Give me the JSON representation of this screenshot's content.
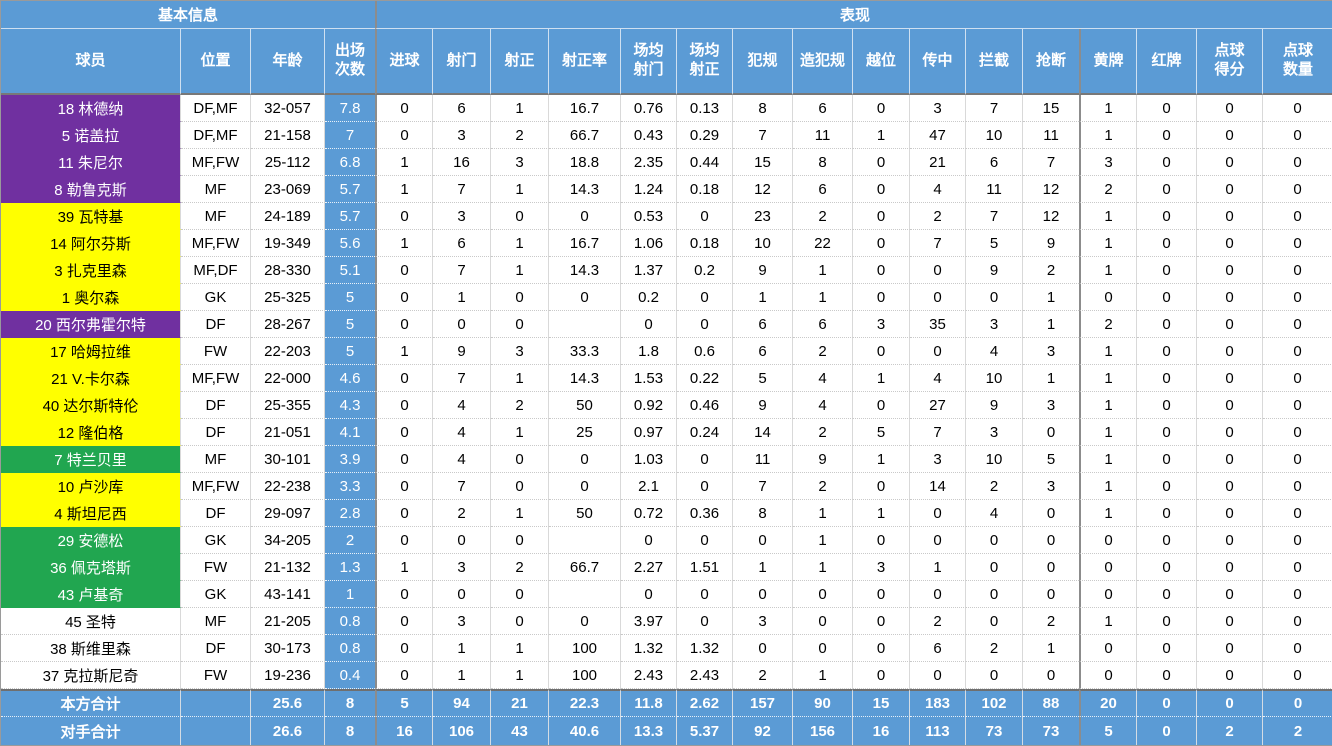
{
  "groups": {
    "basic": "基本信息",
    "performance": "表现"
  },
  "columns": [
    {
      "id": "player",
      "label": "球员"
    },
    {
      "id": "position",
      "label": "位置"
    },
    {
      "id": "age",
      "label": "年龄"
    },
    {
      "id": "apps",
      "label": "出场\n次数"
    },
    {
      "id": "goals",
      "label": "进球"
    },
    {
      "id": "shots",
      "label": "射门"
    },
    {
      "id": "shots_on_target",
      "label": "射正"
    },
    {
      "id": "shot_accuracy",
      "label": "射正率"
    },
    {
      "id": "avg_shots",
      "label": "场均\n射门"
    },
    {
      "id": "avg_shots_on_target",
      "label": "场均\n射正"
    },
    {
      "id": "fouls",
      "label": "犯规"
    },
    {
      "id": "fouls_drawn",
      "label": "造犯规"
    },
    {
      "id": "offsides",
      "label": "越位"
    },
    {
      "id": "crosses",
      "label": "传中"
    },
    {
      "id": "interceptions",
      "label": "拦截"
    },
    {
      "id": "tackles",
      "label": "抢断"
    },
    {
      "id": "yellow_cards",
      "label": "黄牌"
    },
    {
      "id": "red_cards",
      "label": "红牌"
    },
    {
      "id": "penalty_goals",
      "label": "点球\n得分"
    },
    {
      "id": "penalty_count",
      "label": "点球\n数量"
    }
  ],
  "players": [
    {
      "name": "18 林德纳",
      "color": "purple",
      "position": "DF,MF",
      "age": "32-057",
      "apps": "7.8",
      "stats": [
        "0",
        "6",
        "1",
        "16.7",
        "0.76",
        "0.13",
        "8",
        "6",
        "0",
        "3",
        "7",
        "15",
        "1",
        "0",
        "0",
        "0"
      ]
    },
    {
      "name": "5 诺盖拉",
      "color": "purple",
      "position": "DF,MF",
      "age": "21-158",
      "apps": "7",
      "stats": [
        "0",
        "3",
        "2",
        "66.7",
        "0.43",
        "0.29",
        "7",
        "11",
        "1",
        "47",
        "10",
        "11",
        "1",
        "0",
        "0",
        "0"
      ]
    },
    {
      "name": "11 朱尼尔",
      "color": "purple",
      "position": "MF,FW",
      "age": "25-112",
      "apps": "6.8",
      "stats": [
        "1",
        "16",
        "3",
        "18.8",
        "2.35",
        "0.44",
        "15",
        "8",
        "0",
        "21",
        "6",
        "7",
        "3",
        "0",
        "0",
        "0"
      ]
    },
    {
      "name": "8 勒鲁克斯",
      "color": "purple",
      "position": "MF",
      "age": "23-069",
      "apps": "5.7",
      "stats": [
        "1",
        "7",
        "1",
        "14.3",
        "1.24",
        "0.18",
        "12",
        "6",
        "0",
        "4",
        "11",
        "12",
        "2",
        "0",
        "0",
        "0"
      ]
    },
    {
      "name": "39 瓦特基",
      "color": "yellow",
      "position": "MF",
      "age": "24-189",
      "apps": "5.7",
      "stats": [
        "0",
        "3",
        "0",
        "0",
        "0.53",
        "0",
        "23",
        "2",
        "0",
        "2",
        "7",
        "12",
        "1",
        "0",
        "0",
        "0"
      ]
    },
    {
      "name": "14 阿尔芬斯",
      "color": "yellow",
      "position": "MF,FW",
      "age": "19-349",
      "apps": "5.6",
      "stats": [
        "1",
        "6",
        "1",
        "16.7",
        "1.06",
        "0.18",
        "10",
        "22",
        "0",
        "7",
        "5",
        "9",
        "1",
        "0",
        "0",
        "0"
      ]
    },
    {
      "name": "3 扎克里森",
      "color": "yellow",
      "position": "MF,DF",
      "age": "28-330",
      "apps": "5.1",
      "stats": [
        "0",
        "7",
        "1",
        "14.3",
        "1.37",
        "0.2",
        "9",
        "1",
        "0",
        "0",
        "9",
        "2",
        "1",
        "0",
        "0",
        "0"
      ]
    },
    {
      "name": "1 奥尔森",
      "color": "yellow",
      "position": "GK",
      "age": "25-325",
      "apps": "5",
      "stats": [
        "0",
        "1",
        "0",
        "0",
        "0.2",
        "0",
        "1",
        "1",
        "0",
        "0",
        "0",
        "1",
        "0",
        "0",
        "0",
        "0"
      ]
    },
    {
      "name": "20 西尔弗霍尔特",
      "color": "purple",
      "position": "DF",
      "age": "28-267",
      "apps": "5",
      "stats": [
        "0",
        "0",
        "0",
        "",
        "0",
        "0",
        "6",
        "6",
        "3",
        "35",
        "3",
        "1",
        "2",
        "0",
        "0",
        "0"
      ]
    },
    {
      "name": "17 哈姆拉维",
      "color": "yellow",
      "position": "FW",
      "age": "22-203",
      "apps": "5",
      "stats": [
        "1",
        "9",
        "3",
        "33.3",
        "1.8",
        "0.6",
        "6",
        "2",
        "0",
        "0",
        "4",
        "3",
        "1",
        "0",
        "0",
        "0"
      ]
    },
    {
      "name": "21 V.卡尔森",
      "color": "yellow",
      "position": "MF,FW",
      "age": "22-000",
      "apps": "4.6",
      "stats": [
        "0",
        "7",
        "1",
        "14.3",
        "1.53",
        "0.22",
        "5",
        "4",
        "1",
        "4",
        "10",
        "1",
        "1",
        "0",
        "0",
        "0"
      ]
    },
    {
      "name": "40 达尔斯特伦",
      "color": "yellow",
      "position": "DF",
      "age": "25-355",
      "apps": "4.3",
      "stats": [
        "0",
        "4",
        "2",
        "50",
        "0.92",
        "0.46",
        "9",
        "4",
        "0",
        "27",
        "9",
        "3",
        "1",
        "0",
        "0",
        "0"
      ]
    },
    {
      "name": "12 隆伯格",
      "color": "yellow",
      "position": "DF",
      "age": "21-051",
      "apps": "4.1",
      "stats": [
        "0",
        "4",
        "1",
        "25",
        "0.97",
        "0.24",
        "14",
        "2",
        "5",
        "7",
        "3",
        "0",
        "1",
        "0",
        "0",
        "0"
      ]
    },
    {
      "name": "7 特兰贝里",
      "color": "green",
      "position": "MF",
      "age": "30-101",
      "apps": "3.9",
      "stats": [
        "0",
        "4",
        "0",
        "0",
        "1.03",
        "0",
        "11",
        "9",
        "1",
        "3",
        "10",
        "5",
        "1",
        "0",
        "0",
        "0"
      ]
    },
    {
      "name": "10 卢沙库",
      "color": "yellow",
      "position": "MF,FW",
      "age": "22-238",
      "apps": "3.3",
      "stats": [
        "0",
        "7",
        "0",
        "0",
        "2.1",
        "0",
        "7",
        "2",
        "0",
        "14",
        "2",
        "3",
        "1",
        "0",
        "0",
        "0"
      ]
    },
    {
      "name": "4 斯坦尼西",
      "color": "yellow",
      "position": "DF",
      "age": "29-097",
      "apps": "2.8",
      "stats": [
        "0",
        "2",
        "1",
        "50",
        "0.72",
        "0.36",
        "8",
        "1",
        "1",
        "0",
        "4",
        "0",
        "1",
        "0",
        "0",
        "0"
      ]
    },
    {
      "name": "29 安德松",
      "color": "green",
      "position": "GK",
      "age": "34-205",
      "apps": "2",
      "stats": [
        "0",
        "0",
        "0",
        "",
        "0",
        "0",
        "0",
        "1",
        "0",
        "0",
        "0",
        "0",
        "0",
        "0",
        "0",
        "0"
      ]
    },
    {
      "name": "36 佩克塔斯",
      "color": "green",
      "position": "FW",
      "age": "21-132",
      "apps": "1.3",
      "stats": [
        "1",
        "3",
        "2",
        "66.7",
        "2.27",
        "1.51",
        "1",
        "1",
        "3",
        "1",
        "0",
        "0",
        "0",
        "0",
        "0",
        "0"
      ]
    },
    {
      "name": "43 卢基奇",
      "color": "green",
      "position": "GK",
      "age": "43-141",
      "apps": "1",
      "stats": [
        "0",
        "0",
        "0",
        "",
        "0",
        "0",
        "0",
        "0",
        "0",
        "0",
        "0",
        "0",
        "0",
        "0",
        "0",
        "0"
      ]
    },
    {
      "name": "45 圣特",
      "color": "white",
      "position": "MF",
      "age": "21-205",
      "apps": "0.8",
      "stats": [
        "0",
        "3",
        "0",
        "0",
        "3.97",
        "0",
        "3",
        "0",
        "0",
        "2",
        "0",
        "2",
        "1",
        "0",
        "0",
        "0"
      ]
    },
    {
      "name": "38 斯维里森",
      "color": "white",
      "position": "DF",
      "age": "30-173",
      "apps": "0.8",
      "stats": [
        "0",
        "1",
        "1",
        "100",
        "1.32",
        "1.32",
        "0",
        "0",
        "0",
        "6",
        "2",
        "1",
        "0",
        "0",
        "0",
        "0"
      ]
    },
    {
      "name": "37 克拉斯尼奇",
      "color": "white",
      "position": "FW",
      "age": "19-236",
      "apps": "0.4",
      "stats": [
        "0",
        "1",
        "1",
        "100",
        "2.43",
        "2.43",
        "2",
        "1",
        "0",
        "0",
        "0",
        "0",
        "0",
        "0",
        "0",
        "0"
      ]
    }
  ],
  "totals": [
    {
      "label": "本方合计",
      "position": "",
      "age": "25.6",
      "apps": "8",
      "stats": [
        "5",
        "94",
        "21",
        "22.3",
        "11.8",
        "2.62",
        "157",
        "90",
        "15",
        "183",
        "102",
        "88",
        "20",
        "0",
        "0",
        "0"
      ]
    },
    {
      "label": "对手合计",
      "position": "",
      "age": "26.6",
      "apps": "8",
      "stats": [
        "16",
        "106",
        "43",
        "40.6",
        "13.3",
        "5.37",
        "92",
        "156",
        "16",
        "113",
        "73",
        "73",
        "5",
        "0",
        "2",
        "2"
      ]
    }
  ],
  "colors": {
    "header_blue": "#5B9BD5",
    "row_purple": "#7030A0",
    "row_yellow": "#FFFF00",
    "row_green": "#21A650",
    "row_white": "#FFFFFF",
    "grid_dark": "#8C8C8C",
    "grid_light": "#D9D9D9"
  }
}
